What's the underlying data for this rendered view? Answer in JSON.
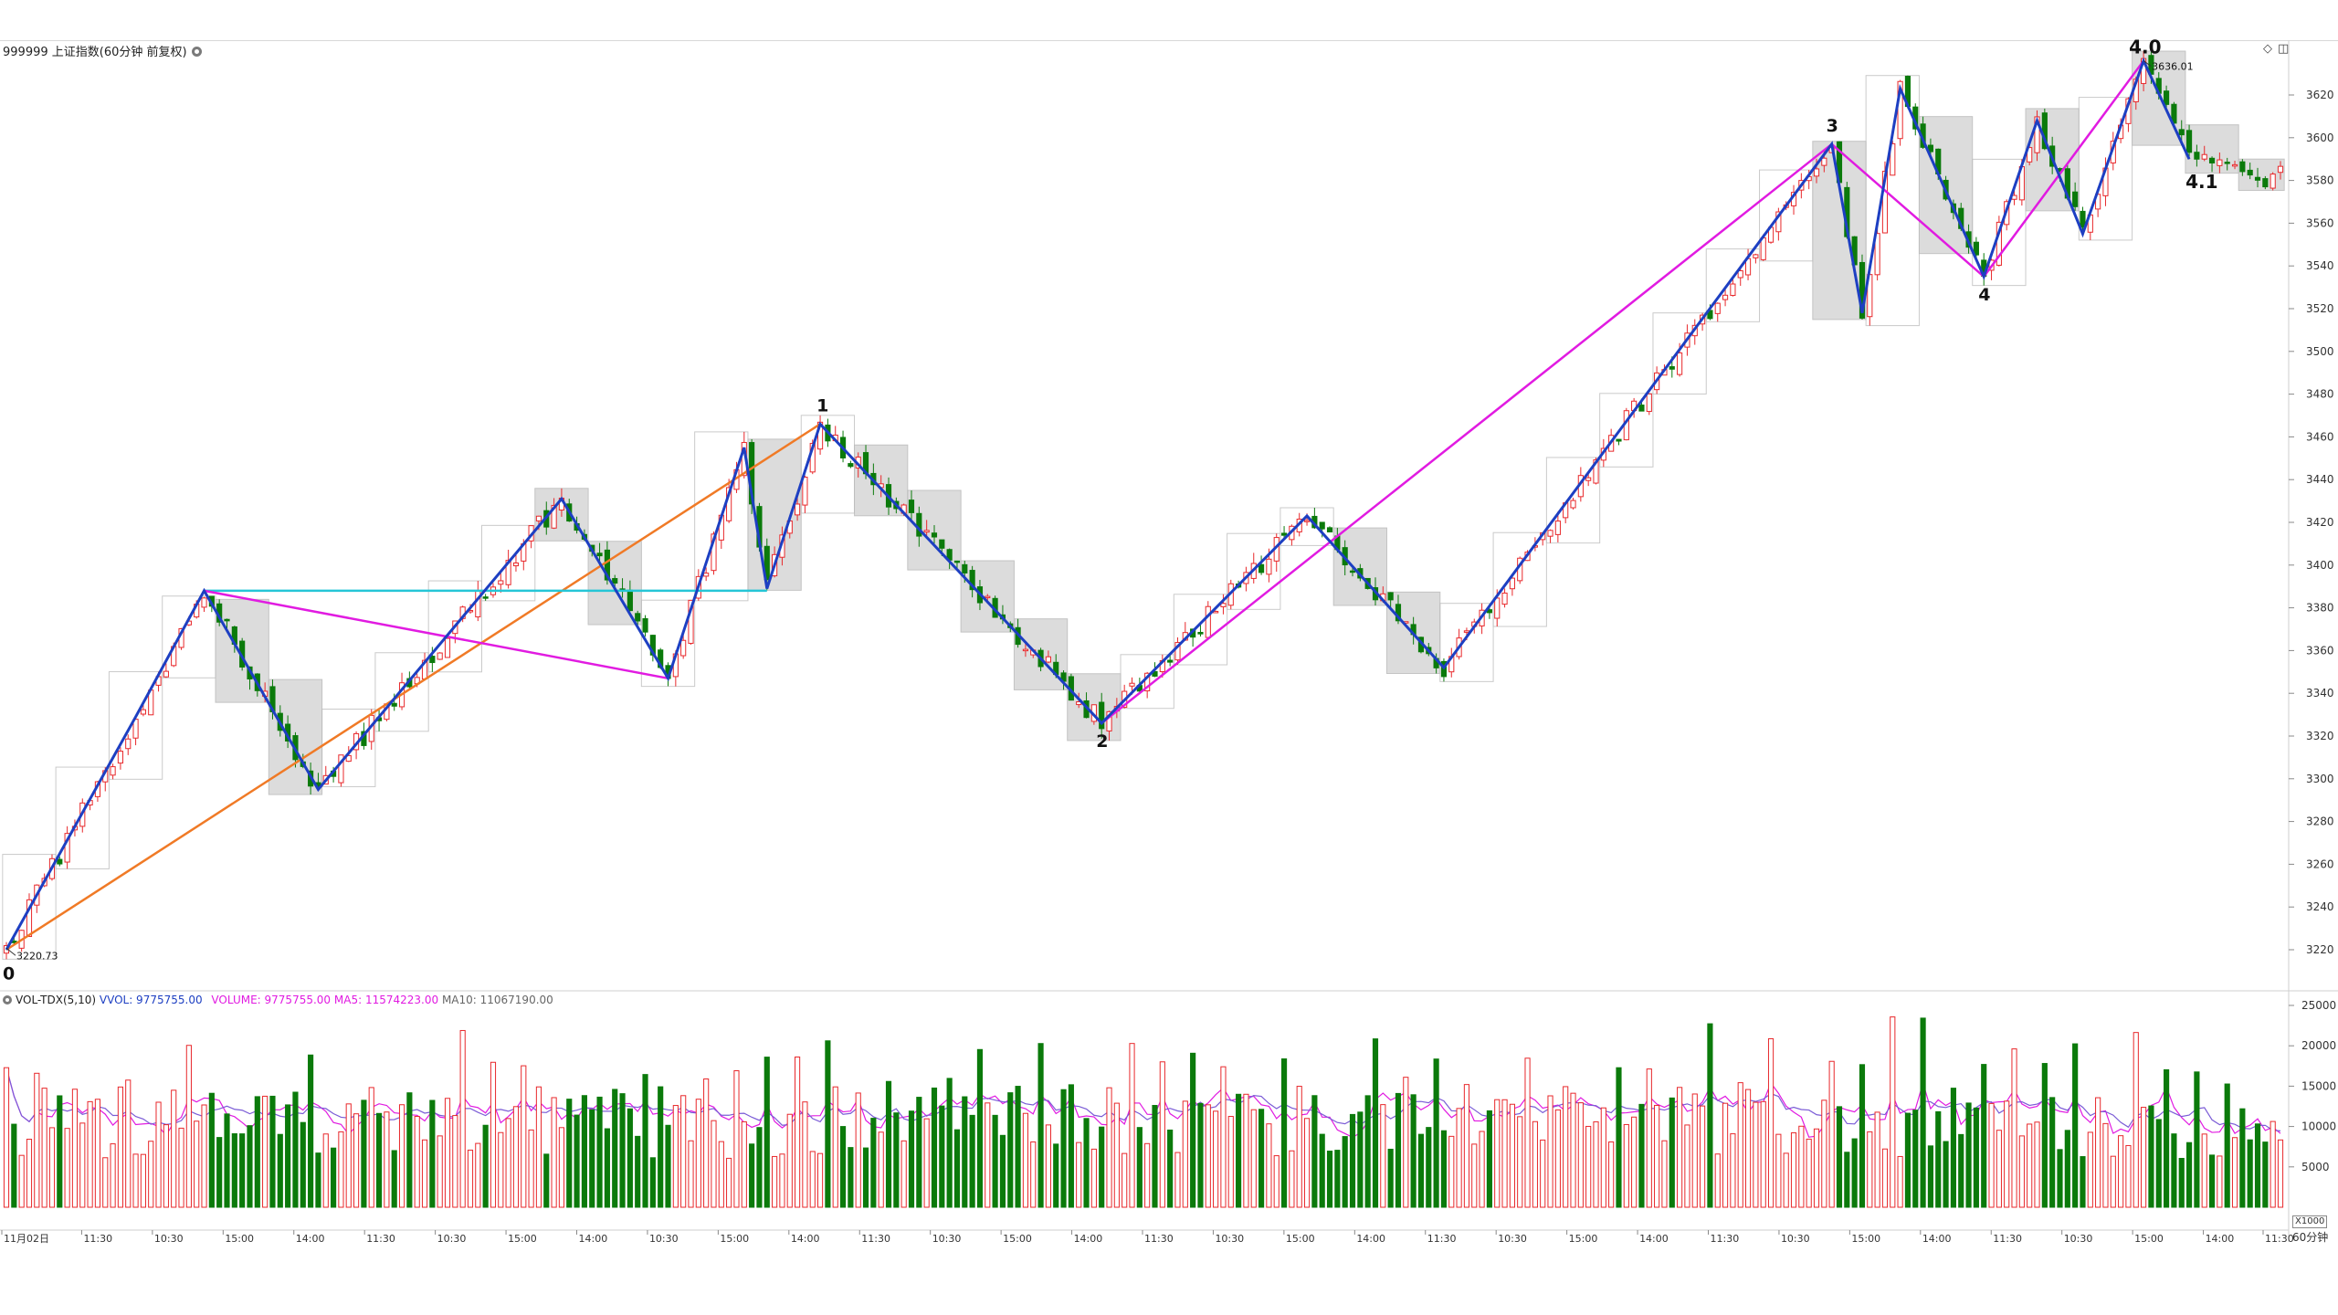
{
  "header": {
    "title": "999999 上证指数(60分钟 前复权)",
    "settings_icon": "gear-icon",
    "right_icons": [
      "diamond-icon",
      "panel-toggle-icon"
    ]
  },
  "price_marks": {
    "high_label": "3636.01",
    "low_label": "3220.73"
  },
  "wave_labels": [
    "0",
    "1",
    "2",
    "3",
    "4",
    "4.0",
    "4.1"
  ],
  "volume_header": {
    "name": "VOL-TDX(5,10)",
    "vvol": "VVOL: 9775755.00",
    "volume": "VOLUME: 9775755.00",
    "ma5": "MA5: 11574223.00",
    "ma10": "MA10: 11067190.00"
  },
  "footer": {
    "unit": "X1000",
    "period": "60分钟",
    "time_ticks": [
      "11月02日",
      "11:30",
      "10:30",
      "15:00",
      "14:00",
      "11:30",
      "10:30",
      "15:00",
      "14:00",
      "10:30",
      "15:00",
      "14:00",
      "11:30",
      "10:30",
      "15:00",
      "14:00",
      "11:30",
      "10:30",
      "15:00",
      "14:00",
      "11:30",
      "10:30",
      "15:00",
      "14:00",
      "11:30",
      "10:30",
      "15:00",
      "14:00",
      "11:30",
      "10:30",
      "15:00",
      "14:00",
      "11:30"
    ]
  },
  "colors": {
    "up": "#e8282b",
    "down": "#0b7a0b",
    "wave_blue": "#1d3fc2",
    "wave_magenta": "#e11be1",
    "trend_orange": "#f07a26",
    "trend_cyan": "#25c6d6",
    "box_gray": "#d9d9d9",
    "ma5": "#e11be1",
    "ma10": "#7b5cd6",
    "vvol": "#1d3fc2"
  },
  "chart_data": {
    "type": "candlestick",
    "ylim_price": [
      3212,
      3640
    ],
    "price_ticks": [
      3220,
      3240,
      3260,
      3280,
      3300,
      3320,
      3340,
      3360,
      3380,
      3400,
      3420,
      3440,
      3460,
      3480,
      3500,
      3520,
      3540,
      3560,
      3580,
      3600,
      3620
    ],
    "volume_ticks": [
      5000,
      10000,
      15000,
      20000,
      25000
    ],
    "ylim_volume": [
      0,
      26000
    ],
    "n_bars": 300,
    "wave_pivots": [
      {
        "label": "0",
        "bar": 0,
        "price": 3220.73
      },
      {
        "label": "1",
        "bar": 107,
        "price": 3466
      },
      {
        "label": "2",
        "bar": 144,
        "price": 3326
      },
      {
        "label": "3",
        "bar": 240,
        "price": 3597
      },
      {
        "label": "4",
        "bar": 260,
        "price": 3535
      },
      {
        "label": "4.0",
        "bar": 281,
        "price": 3636.01
      },
      {
        "label": "4.1",
        "bar": 287,
        "price": 3590
      }
    ],
    "blue_zigzag": [
      [
        0,
        3220
      ],
      [
        17,
        3329
      ],
      [
        26,
        3388
      ],
      [
        41,
        3295
      ],
      [
        73,
        3431
      ],
      [
        87,
        3347
      ],
      [
        97,
        3455
      ],
      [
        100,
        3389
      ],
      [
        107,
        3466
      ],
      [
        144,
        3326
      ],
      [
        171,
        3423
      ],
      [
        189,
        3352
      ],
      [
        240,
        3597
      ],
      [
        244,
        3518
      ],
      [
        249,
        3623
      ],
      [
        260,
        3535
      ],
      [
        267,
        3608
      ],
      [
        273,
        3555
      ],
      [
        281,
        3636
      ],
      [
        287,
        3590
      ]
    ],
    "magenta_lines": [
      [
        [
          26,
          3388
        ],
        [
          87,
          3347
        ]
      ],
      [
        [
          144,
          3326
        ],
        [
          240,
          3597
        ],
        [
          260,
          3535
        ],
        [
          281,
          3636
        ]
      ]
    ],
    "orange_line": [
      [
        0,
        3220
      ],
      [
        107,
        3466
      ]
    ],
    "cyan_line": [
      [
        26,
        3388
      ],
      [
        100,
        3388
      ]
    ]
  }
}
